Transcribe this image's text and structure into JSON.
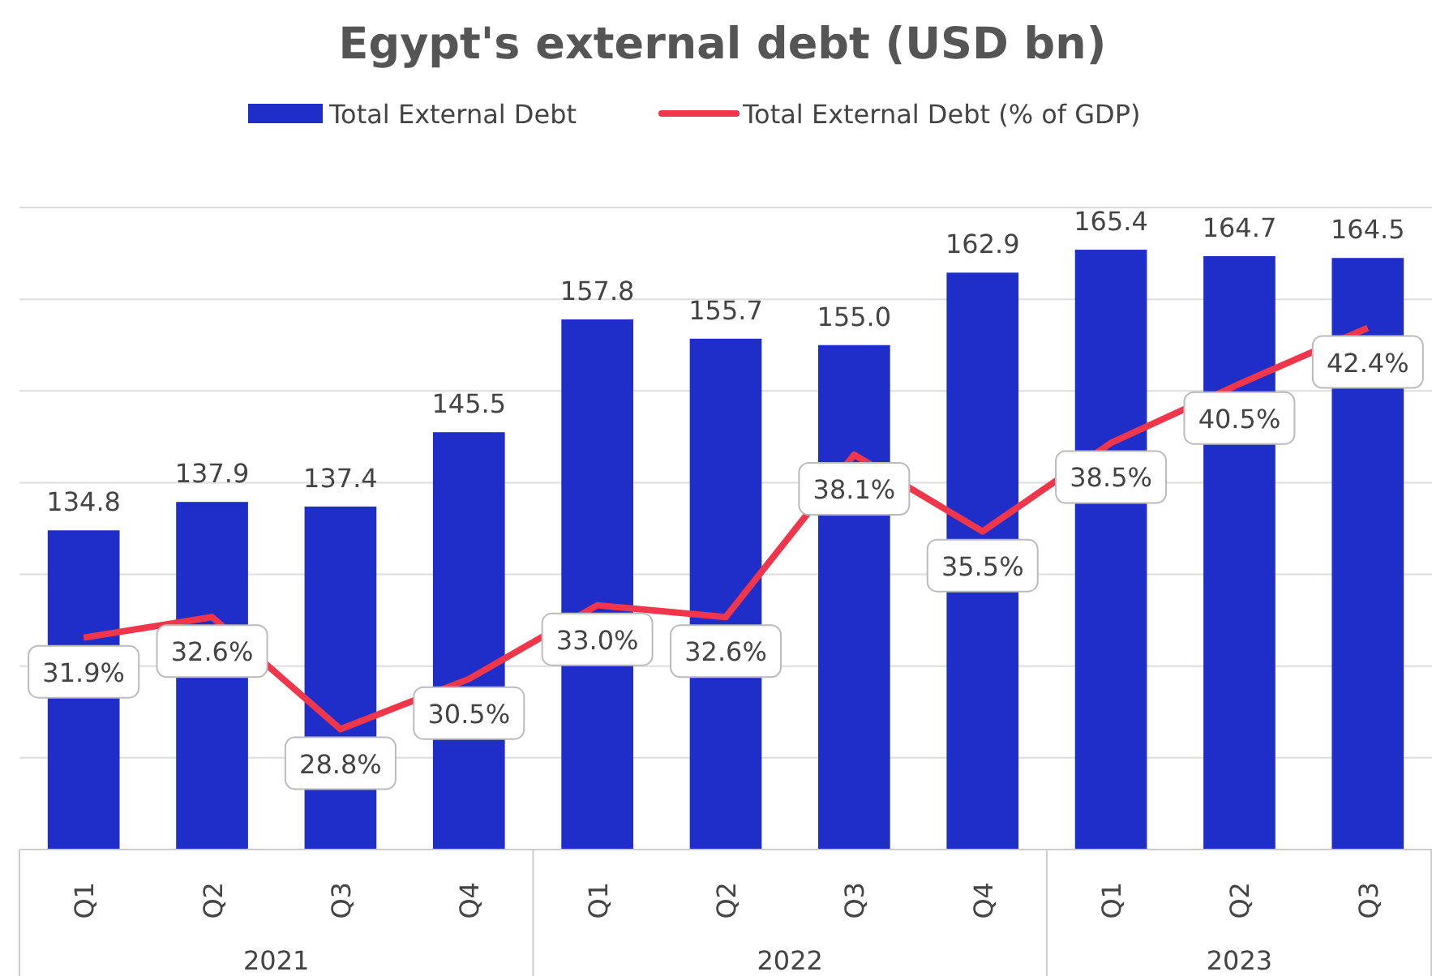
{
  "chart_data": {
    "type": "bar",
    "title": "Egypt's external debt (USD bn)",
    "categories": [
      "Q1",
      "Q2",
      "Q3",
      "Q4",
      "Q1",
      "Q2",
      "Q3",
      "Q4",
      "Q1",
      "Q2",
      "Q3"
    ],
    "series": [
      {
        "name": "Total External Debt",
        "color": "#1f2ec8",
        "values": [
          134.8,
          137.9,
          137.4,
          145.5,
          157.8,
          155.7,
          155.0,
          162.9,
          165.4,
          164.7,
          164.5
        ],
        "value_labels": [
          "134.8",
          "137.9",
          "137.4",
          "145.5",
          "157.8",
          "155.7",
          "155.0",
          "162.9",
          "165.4",
          "164.7",
          "164.5"
        ]
      },
      {
        "name": "Total External Debt (% of GDP)",
        "type": "line",
        "axis": "y2",
        "color": "#f0364a",
        "values": [
          31.9,
          32.6,
          28.8,
          30.5,
          33.0,
          32.6,
          38.1,
          35.5,
          38.5,
          40.5,
          42.4
        ],
        "value_labels": [
          "31.9%",
          "32.6%",
          "28.8%",
          "30.5%",
          "33.0%",
          "32.6%",
          "38.1%",
          "35.5%",
          "38.5%",
          "40.5%",
          "42.4%"
        ]
      }
    ],
    "ylim": [
      100,
      170
    ],
    "yticks": [
      100,
      110,
      120,
      130,
      140,
      150,
      160,
      170
    ],
    "annotations": [
      "2021",
      "2022",
      "2023"
    ],
    "tick_labels": "x",
    "grid": "y",
    "legend": "top",
    "line_style": "solid"
  }
}
